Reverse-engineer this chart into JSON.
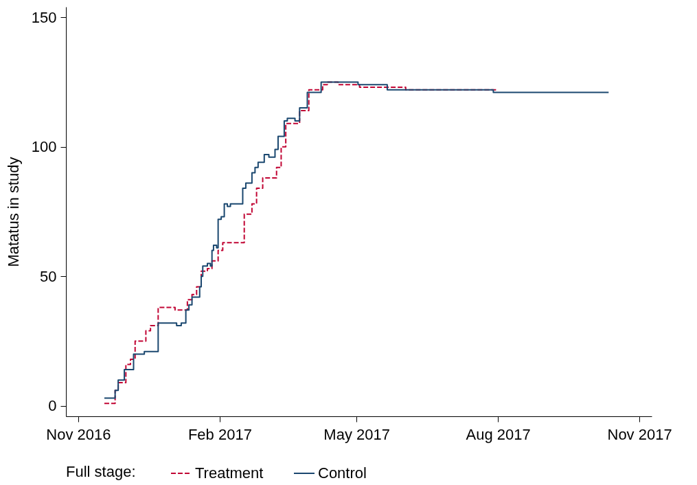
{
  "chart_data": {
    "type": "step",
    "ylabel": "Matatus in study",
    "legend_title": "Full stage:",
    "legend": "bottom",
    "grid": false,
    "xlim": [
      "2016-10-24",
      "2017-11-09"
    ],
    "ylim": [
      -4,
      154
    ],
    "yticks": [
      0,
      50,
      100,
      150
    ],
    "xticks": [
      {
        "value": "2016-11-01",
        "label": "Nov 2016"
      },
      {
        "value": "2017-02-01",
        "label": "Feb 2017"
      },
      {
        "value": "2017-05-01",
        "label": "May 2017"
      },
      {
        "value": "2017-08-01",
        "label": "Aug 2017"
      },
      {
        "value": "2017-11-01",
        "label": "Nov 2017"
      }
    ],
    "series": [
      {
        "name": "Treatment",
        "color": "#c10534",
        "line_style": "dashed",
        "x": [
          "2016-11-18",
          "2016-11-25",
          "2016-11-27",
          "2016-12-02",
          "2016-12-05",
          "2016-12-08",
          "2016-12-15",
          "2016-12-18",
          "2016-12-23",
          "2017-01-03",
          "2017-01-11",
          "2017-01-14",
          "2017-01-17",
          "2017-01-20",
          "2017-01-24",
          "2017-01-27",
          "2017-01-31",
          "2017-02-03",
          "2017-02-17",
          "2017-02-22",
          "2017-02-25",
          "2017-03-01",
          "2017-03-10",
          "2017-03-13",
          "2017-03-16",
          "2017-03-25",
          "2017-03-31",
          "2017-04-09",
          "2017-04-12",
          "2017-04-19",
          "2017-05-03",
          "2017-06-02",
          "2017-08-01"
        ],
        "values": [
          1,
          6,
          9,
          16,
          18,
          25,
          29,
          31,
          38,
          37,
          41,
          43,
          46,
          52,
          53,
          56,
          60,
          63,
          74,
          78,
          84,
          88,
          92,
          100,
          109,
          114,
          122,
          124,
          125,
          124,
          123,
          122,
          122
        ]
      },
      {
        "name": "Control",
        "color": "#1a476f",
        "line_style": "solid",
        "x": [
          "2016-11-18",
          "2016-11-25",
          "2016-11-27",
          "2016-12-01",
          "2016-12-07",
          "2016-12-14",
          "2016-12-23",
          "2017-01-04",
          "2017-01-07",
          "2017-01-10",
          "2017-01-12",
          "2017-01-14",
          "2017-01-19",
          "2017-01-20",
          "2017-01-21",
          "2017-01-24",
          "2017-01-26",
          "2017-01-27",
          "2017-01-28",
          "2017-01-30",
          "2017-01-31",
          "2017-02-02",
          "2017-02-04",
          "2017-02-06",
          "2017-02-08",
          "2017-02-16",
          "2017-02-18",
          "2017-02-22",
          "2017-02-24",
          "2017-02-26",
          "2017-03-02",
          "2017-03-05",
          "2017-03-09",
          "2017-03-11",
          "2017-03-15",
          "2017-03-17",
          "2017-03-22",
          "2017-03-25",
          "2017-03-30",
          "2017-04-08",
          "2017-05-02",
          "2017-05-21",
          "2017-07-29",
          "2017-10-12"
        ],
        "values": [
          3,
          6,
          10,
          14,
          20,
          21,
          32,
          31,
          32,
          37,
          39,
          42,
          46,
          50,
          54,
          55,
          54,
          60,
          62,
          61,
          72,
          73,
          78,
          77,
          78,
          84,
          86,
          90,
          92,
          94,
          97,
          96,
          99,
          104,
          110,
          111,
          110,
          115,
          121,
          125,
          124,
          122,
          121,
          121
        ]
      }
    ]
  }
}
